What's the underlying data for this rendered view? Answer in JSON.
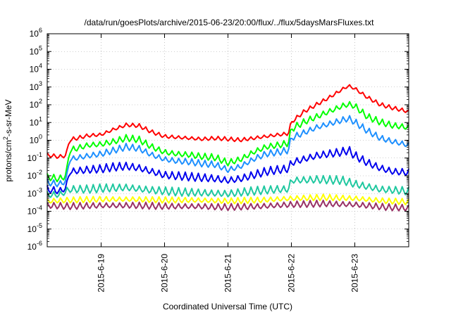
{
  "chart_data": {
    "type": "line",
    "title": "/data/run/goesPlots/archive/2015-06-23/20:00/flux/../flux/5daysMarsFluxes.txt",
    "xlabel": "Coordinated Universal Time (UTC)",
    "ylabel": {
      "base": "protons/cm",
      "sup": "2",
      "rest": "-s-sr-MeV"
    },
    "y_scale": "log",
    "ylim_exponents": [
      -6,
      6
    ],
    "y_tick_labels": [
      {
        "base": "10",
        "exp": "-6"
      },
      {
        "base": "10",
        "exp": "-5"
      },
      {
        "base": "10",
        "exp": "-4"
      },
      {
        "base": "10",
        "exp": "-3"
      },
      {
        "base": "10",
        "exp": "-2"
      },
      {
        "base": "10",
        "exp": "-1"
      },
      {
        "base": "10",
        "exp": "0"
      },
      {
        "base": "10",
        "exp": "1"
      },
      {
        "base": "10",
        "exp": "2"
      },
      {
        "base": "10",
        "exp": "3"
      },
      {
        "base": "10",
        "exp": "4"
      },
      {
        "base": "10",
        "exp": "5"
      },
      {
        "base": "10",
        "exp": "6"
      }
    ],
    "x_unit": "days since the first plotted sample is not used; x is fractional day of June 2015",
    "xlim": [
      18.15,
      23.85
    ],
    "x_ticks": [
      {
        "day": 19,
        "label": "2015-6-19"
      },
      {
        "day": 20,
        "label": "2015-6-20"
      },
      {
        "day": 21,
        "label": "2015-6-21"
      },
      {
        "day": 22,
        "label": "2015-6-22"
      },
      {
        "day": 23,
        "label": "2015-6-23"
      }
    ],
    "grid": true,
    "series": [
      {
        "color": "#ff0000",
        "x": [
          18.15,
          18.35,
          18.45,
          18.5,
          18.8,
          19.0,
          19.2,
          19.4,
          19.6,
          19.8,
          20.0,
          20.2,
          20.4,
          20.6,
          20.8,
          21.0,
          21.2,
          21.4,
          21.6,
          21.8,
          21.95,
          22.0,
          22.2,
          22.4,
          22.6,
          22.8,
          22.9,
          23.0,
          23.2,
          23.4,
          23.6,
          23.85
        ],
        "log10_values": [
          -0.85,
          -0.95,
          -0.85,
          0.0,
          0.25,
          0.3,
          0.6,
          0.85,
          0.8,
          0.45,
          0.2,
          0.15,
          0.1,
          0.05,
          0.1,
          0.05,
          0.0,
          0.1,
          0.2,
          0.3,
          0.35,
          1.0,
          1.6,
          2.0,
          2.4,
          2.85,
          3.05,
          2.9,
          2.4,
          2.0,
          1.8,
          1.6
        ],
        "jag": 0.12
      },
      {
        "color": "#00ff00",
        "x": [
          18.15,
          18.35,
          18.45,
          18.5,
          18.8,
          19.0,
          19.2,
          19.4,
          19.6,
          19.8,
          20.0,
          20.2,
          20.4,
          20.6,
          20.8,
          21.0,
          21.2,
          21.4,
          21.6,
          21.8,
          21.95,
          22.0,
          22.2,
          22.4,
          22.6,
          22.8,
          22.9,
          23.0,
          23.2,
          23.4,
          23.6,
          23.85
        ],
        "log10_values": [
          -2.1,
          -2.2,
          -2.0,
          -0.6,
          -0.3,
          -0.25,
          -0.1,
          0.1,
          0.0,
          -0.4,
          -0.7,
          -0.8,
          -0.85,
          -0.95,
          -1.0,
          -1.3,
          -1.1,
          -0.7,
          -0.4,
          -0.3,
          -0.2,
          0.6,
          1.0,
          1.3,
          1.6,
          1.9,
          2.0,
          1.9,
          1.3,
          1.0,
          0.8,
          0.7
        ],
        "jag": 0.2
      },
      {
        "color": "#1e90ff",
        "x": [
          18.15,
          18.35,
          18.45,
          18.5,
          18.8,
          19.0,
          19.2,
          19.4,
          19.6,
          19.8,
          20.0,
          20.2,
          20.4,
          20.6,
          20.8,
          21.0,
          21.2,
          21.4,
          21.6,
          21.8,
          21.95,
          22.0,
          22.2,
          22.4,
          22.6,
          22.8,
          22.9,
          23.0,
          23.2,
          23.4,
          23.6,
          23.85
        ],
        "log10_values": [
          -2.4,
          -2.5,
          -2.3,
          -1.1,
          -0.9,
          -0.8,
          -0.6,
          -0.4,
          -0.5,
          -0.85,
          -1.1,
          -1.2,
          -1.25,
          -1.35,
          -1.4,
          -1.7,
          -1.5,
          -1.1,
          -0.8,
          -0.7,
          -0.6,
          0.1,
          0.4,
          0.7,
          0.9,
          1.1,
          1.2,
          1.0,
          0.5,
          0.1,
          -0.1,
          -0.3
        ],
        "jag": 0.2
      },
      {
        "color": "#0000ee",
        "x": [
          18.15,
          18.35,
          18.45,
          18.5,
          18.8,
          19.0,
          19.2,
          19.4,
          19.6,
          19.8,
          20.0,
          20.2,
          20.4,
          20.6,
          20.8,
          21.0,
          21.2,
          21.4,
          21.6,
          21.8,
          21.95,
          22.0,
          22.2,
          22.4,
          22.6,
          22.8,
          22.9,
          23.0,
          23.2,
          23.4,
          23.6,
          23.85
        ],
        "log10_values": [
          -2.8,
          -2.9,
          -2.7,
          -1.8,
          -1.7,
          -1.65,
          -1.55,
          -1.5,
          -1.6,
          -1.8,
          -2.0,
          -2.05,
          -2.1,
          -2.15,
          -2.2,
          -2.3,
          -2.2,
          -2.0,
          -1.8,
          -1.7,
          -1.65,
          -1.3,
          -1.1,
          -0.9,
          -0.8,
          -0.7,
          -0.6,
          -0.9,
          -1.3,
          -1.6,
          -1.8,
          -1.85
        ],
        "jag": 0.25
      },
      {
        "color": "#20c8a0",
        "x": [
          18.15,
          18.35,
          18.5,
          18.8,
          19.0,
          19.4,
          19.8,
          20.2,
          20.6,
          21.0,
          21.4,
          21.8,
          21.95,
          22.0,
          22.4,
          22.8,
          23.0,
          23.4,
          23.85
        ],
        "log10_values": [
          -3.1,
          -3.1,
          -2.8,
          -2.8,
          -2.75,
          -2.7,
          -2.85,
          -2.95,
          -3.0,
          -3.05,
          -2.9,
          -2.8,
          -2.8,
          -2.3,
          -2.25,
          -2.3,
          -2.5,
          -2.8,
          -2.9
        ],
        "jag": 0.25
      },
      {
        "color": "#ffff00",
        "x": [
          18.15,
          18.5,
          19.0,
          19.5,
          20.0,
          20.5,
          21.0,
          21.5,
          22.0,
          22.5,
          23.0,
          23.5,
          23.85
        ],
        "log10_values": [
          -3.45,
          -3.4,
          -3.35,
          -3.35,
          -3.4,
          -3.4,
          -3.45,
          -3.4,
          -3.3,
          -3.25,
          -3.3,
          -3.45,
          -3.5
        ],
        "jag": 0.18
      },
      {
        "color": "#993366",
        "x": [
          18.15,
          18.5,
          19.0,
          19.5,
          20.0,
          20.5,
          21.0,
          21.5,
          22.0,
          22.5,
          23.0,
          23.5,
          23.85
        ],
        "log10_values": [
          -3.7,
          -3.75,
          -3.7,
          -3.7,
          -3.75,
          -3.75,
          -3.8,
          -3.75,
          -3.65,
          -3.6,
          -3.65,
          -3.8,
          -3.85
        ],
        "jag": 0.2
      }
    ]
  }
}
